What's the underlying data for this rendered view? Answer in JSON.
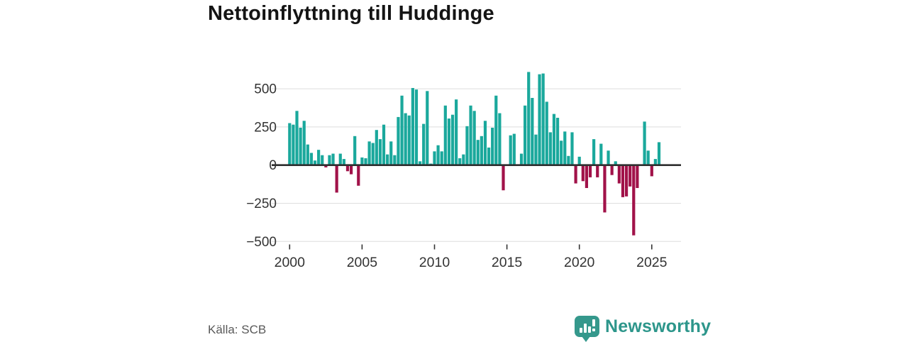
{
  "header": {
    "title": "Nettoinflyttning till Huddinge"
  },
  "footer": {
    "source": "Källa: SCB",
    "brand": "Newsworthy",
    "logo_icon": "bar-chart-speech-bubble-icon"
  },
  "chart_data": {
    "type": "bar",
    "title": "Nettoinflyttning till Huddinge",
    "ylabel": "",
    "xlabel": "",
    "frequency": "quarterly",
    "start_year": 2000,
    "start_quarter": 1,
    "end_year": 2025,
    "end_quarter": 3,
    "values": [
      275,
      265,
      355,
      245,
      290,
      135,
      80,
      30,
      100,
      65,
      -15,
      65,
      75,
      -180,
      75,
      40,
      -40,
      -60,
      190,
      -135,
      50,
      45,
      155,
      145,
      230,
      170,
      265,
      70,
      155,
      65,
      315,
      455,
      340,
      325,
      505,
      495,
      25,
      270,
      485,
      10,
      90,
      130,
      90,
      390,
      305,
      330,
      430,
      45,
      70,
      255,
      390,
      355,
      165,
      190,
      290,
      115,
      245,
      455,
      340,
      -165,
      5,
      195,
      205,
      5,
      75,
      390,
      610,
      440,
      200,
      595,
      600,
      415,
      215,
      335,
      310,
      160,
      220,
      60,
      215,
      -120,
      55,
      -105,
      -150,
      -80,
      170,
      -80,
      140,
      -310,
      95,
      -65,
      25,
      -120,
      -210,
      -205,
      -140,
      -460,
      -150,
      5,
      285,
      95,
      -73,
      40,
      150
    ],
    "y_ticks": [
      500,
      250,
      0,
      -250,
      -500
    ],
    "x_ticks": [
      2000,
      2005,
      2010,
      2015,
      2020,
      2025
    ],
    "ylim": [
      -500,
      610
    ],
    "grid": true,
    "legend": "none",
    "positive_color": "#1aa89c",
    "negative_color": "#a11249",
    "zero_line_color": "#2f2f2f",
    "grid_color": "#dedede",
    "axis_text_color": "#333333"
  }
}
